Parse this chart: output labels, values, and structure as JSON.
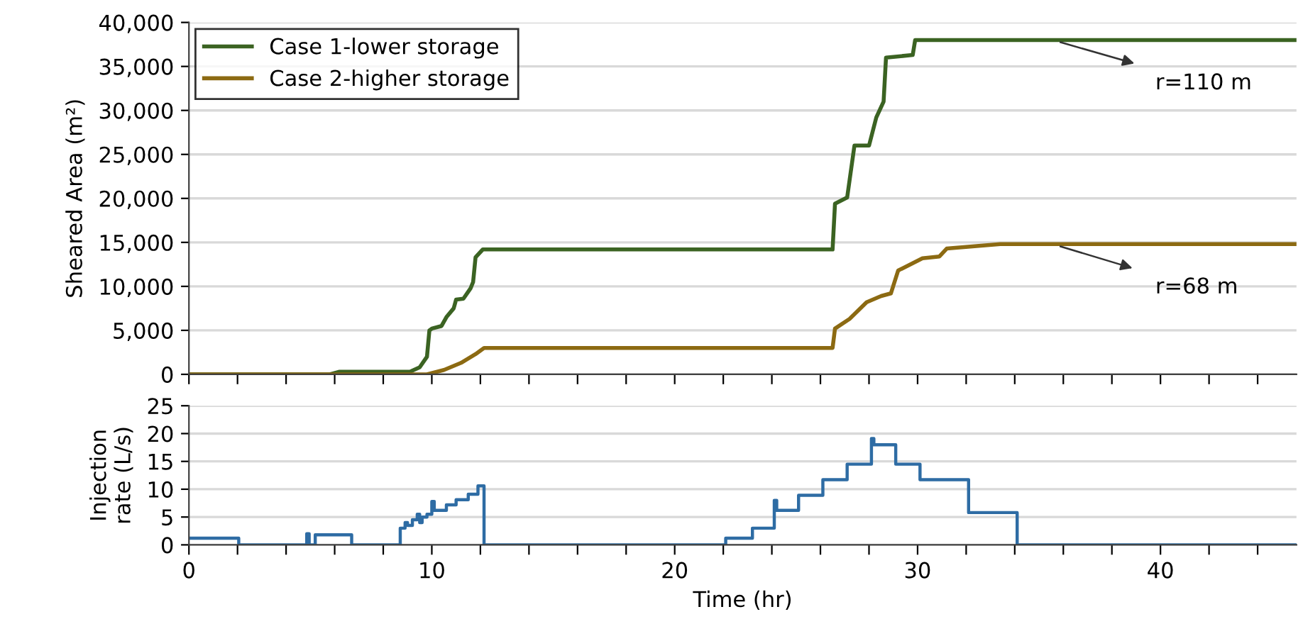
{
  "chart_data": [
    {
      "type": "line",
      "ylabel": "Sheared Area (m²)",
      "legend": "top left",
      "grid": "y",
      "tick_labels": "y",
      "xlim": [
        0,
        45.6
      ],
      "xticks": [
        {
          "value": 0,
          "label": null
        },
        {
          "value": 2,
          "label": null
        },
        {
          "value": 4,
          "label": null
        },
        {
          "value": 6,
          "label": null
        },
        {
          "value": 8,
          "label": null
        },
        {
          "value": 10,
          "label": null
        },
        {
          "value": 12,
          "label": null
        },
        {
          "value": 14,
          "label": null
        },
        {
          "value": 16,
          "label": null
        },
        {
          "value": 18,
          "label": null
        },
        {
          "value": 20,
          "label": null
        },
        {
          "value": 22,
          "label": null
        },
        {
          "value": 24,
          "label": null
        },
        {
          "value": 26,
          "label": null
        },
        {
          "value": 28,
          "label": null
        },
        {
          "value": 30,
          "label": null
        },
        {
          "value": 32,
          "label": null
        },
        {
          "value": 34,
          "label": null
        },
        {
          "value": 36,
          "label": null
        },
        {
          "value": 38,
          "label": null
        },
        {
          "value": 40,
          "label": null
        },
        {
          "value": 42,
          "label": null
        },
        {
          "value": 44,
          "label": null
        }
      ],
      "ylim": [
        0,
        40000
      ],
      "yticks": [
        0,
        {
          "value": 5000,
          "label": "5,000"
        },
        {
          "value": 10000,
          "label": "10,000"
        },
        {
          "value": 15000,
          "label": "15,000"
        },
        {
          "value": 20000,
          "label": "20,000"
        },
        {
          "value": 25000,
          "label": "25,000"
        },
        {
          "value": 30000,
          "label": "30,000"
        },
        {
          "value": 35000,
          "label": "35,000"
        },
        {
          "value": 40000,
          "label": "40,000"
        }
      ],
      "series": [
        {
          "name": "Case 1-lower storage",
          "color": "#3b6322",
          "x": [
            0,
            5.8,
            6.2,
            9.1,
            9.5,
            9.8,
            9.9,
            10.0,
            10.4,
            10.6,
            10.9,
            11.0,
            11.3,
            11.6,
            11.7,
            11.8,
            12.1,
            26.5,
            26.6,
            27.1,
            27.4,
            28.0,
            28.3,
            28.6,
            28.7,
            29.8,
            29.9,
            45.6
          ],
          "values": [
            0,
            0,
            300,
            300,
            800,
            2000,
            5000,
            5200,
            5500,
            6500,
            7500,
            8500,
            8600,
            9800,
            10500,
            13300,
            14200,
            14200,
            19400,
            20100,
            26000,
            26000,
            29200,
            31000,
            36000,
            36300,
            38000,
            38000
          ]
        },
        {
          "name": "Case 2-higher storage",
          "color": "#8c6a12",
          "x": [
            0,
            9.8,
            10.5,
            11.2,
            11.8,
            12.15,
            26.5,
            26.6,
            27.2,
            27.9,
            28.5,
            28.9,
            29.2,
            30.2,
            30.9,
            31.2,
            33.4,
            45.6
          ],
          "values": [
            0,
            0,
            500,
            1300,
            2300,
            3000,
            3000,
            5200,
            6300,
            8200,
            8900,
            9200,
            11800,
            13200,
            13400,
            14300,
            14800,
            14800
          ]
        }
      ],
      "annotations": [
        "r=110 m",
        "r=68 m"
      ]
    },
    {
      "type": "step",
      "ylabel": "Injection\nrate (L/s)",
      "xlabel": "Time (hr)",
      "grid": "y",
      "xlim": [
        0,
        45.6
      ],
      "xticks": [
        0,
        {
          "value": 2,
          "label": null
        },
        {
          "value": 4,
          "label": null
        },
        {
          "value": 6,
          "label": null
        },
        {
          "value": 8,
          "label": null
        },
        10,
        {
          "value": 12,
          "label": null
        },
        {
          "value": 14,
          "label": null
        },
        {
          "value": 16,
          "label": null
        },
        {
          "value": 18,
          "label": null
        },
        20,
        {
          "value": 22,
          "label": null
        },
        {
          "value": 24,
          "label": null
        },
        {
          "value": 26,
          "label": null
        },
        {
          "value": 28,
          "label": null
        },
        30,
        {
          "value": 32,
          "label": null
        },
        {
          "value": 34,
          "label": null
        },
        {
          "value": 36,
          "label": null
        },
        {
          "value": 38,
          "label": null
        },
        40,
        {
          "value": 42,
          "label": null
        },
        {
          "value": 44,
          "label": null
        }
      ],
      "ylim": [
        0,
        25
      ],
      "yticks": [
        0,
        5,
        10,
        15,
        20,
        25
      ],
      "series": [
        {
          "color": "#2e6ca4",
          "x": [
            0,
            2.05,
            4.85,
            4.95,
            5.2,
            6.7,
            8.7,
            8.9,
            9.0,
            9.2,
            9.4,
            9.5,
            9.6,
            9.8,
            10.0,
            10.1,
            10.6,
            11.0,
            11.5,
            11.9,
            12.15,
            22.1,
            23.2,
            24.1,
            24.2,
            25.1,
            26.1,
            27.1,
            28.1,
            28.2,
            29.1,
            30.1,
            32.1,
            34.1,
            45.6
          ],
          "values": [
            1.2,
            0,
            2.0,
            0,
            1.8,
            0,
            3.0,
            4.0,
            3.5,
            4.5,
            5.5,
            4.0,
            5.0,
            5.5,
            7.8,
            6.2,
            7.2,
            8.1,
            9.1,
            10.6,
            0,
            1.2,
            3.0,
            8.0,
            6.2,
            8.9,
            11.7,
            14.5,
            19.1,
            18.0,
            14.5,
            11.7,
            5.8,
            0,
            0
          ]
        }
      ]
    }
  ]
}
